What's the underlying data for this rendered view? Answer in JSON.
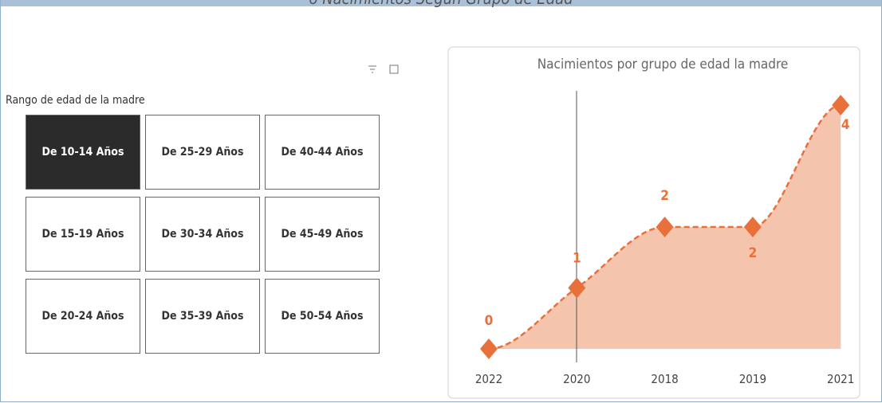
{
  "page_title": "o Nacimientos Según Grupo de Edad",
  "slicer": {
    "label": "Rango de edad de la madre",
    "selected": 0,
    "options": [
      "De 10-14 Años",
      "De 15-19 Años",
      "De 20-24 Años",
      "De 25-29 Años",
      "De 30-34 Años",
      "De 35-39 Años",
      "De 40-44 Años",
      "De 45-49 Años",
      "De 50-54 Años"
    ]
  },
  "chart_data": {
    "type": "line",
    "title": "Nacimientos por grupo de edad la madre",
    "categories": [
      "2022",
      "2020",
      "2018",
      "2019",
      "2021"
    ],
    "values": [
      0,
      1,
      2,
      2,
      4
    ],
    "color": "#e8703a",
    "area_color": "#f5c4ad",
    "area": true,
    "grid": false
  }
}
